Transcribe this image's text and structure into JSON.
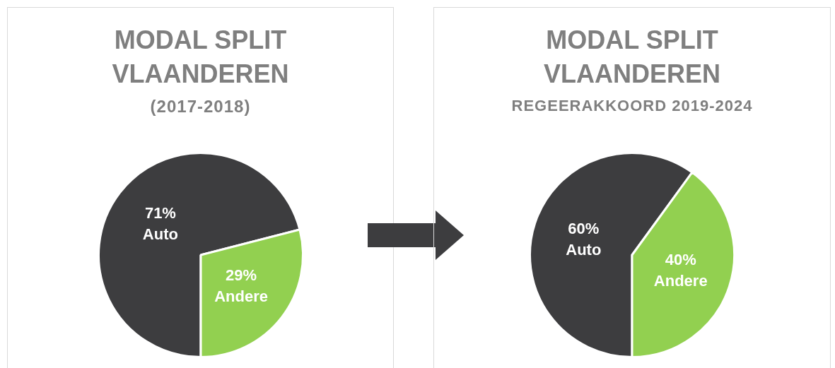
{
  "chart_data": [
    {
      "type": "pie",
      "title": "MODAL SPLIT VLAANDEREN",
      "subtitle": "(2017-2018)",
      "categories": [
        "Auto",
        "Andere"
      ],
      "values": [
        71,
        29
      ],
      "colors": [
        "#3d3d3f",
        "#92d050"
      ],
      "value_labels": [
        "71%",
        "29%"
      ],
      "legend": false
    },
    {
      "type": "pie",
      "title": "MODAL SPLIT VLAANDEREN",
      "subtitle": "REGEERAKKOORD 2019-2024",
      "categories": [
        "Auto",
        "Andere"
      ],
      "values": [
        60,
        40
      ],
      "colors": [
        "#3d3d3f",
        "#92d050"
      ],
      "value_labels": [
        "60%",
        "40%"
      ],
      "legend": false
    }
  ]
}
